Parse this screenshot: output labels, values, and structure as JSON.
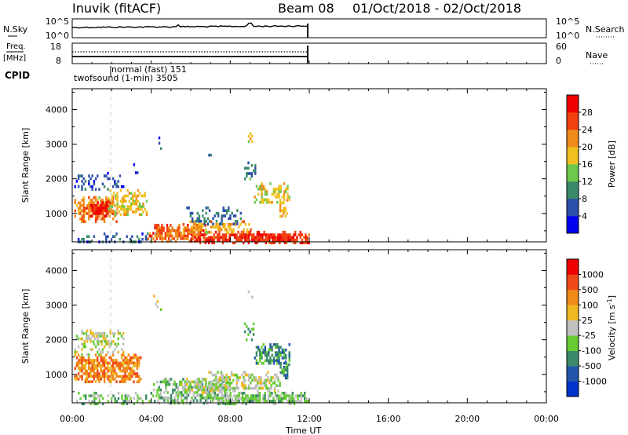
{
  "header": {
    "station": "Inuvik (fitACF)",
    "beam": "Beam 08",
    "date_range": "01/Oct/2018 - 02/Oct/2018"
  },
  "noise_panel": {
    "left_label": "N.Sky",
    "right_label": "N.Search",
    "left_ticks": [
      "10^5",
      "10^0"
    ],
    "right_ticks": [
      "10^5",
      "10^0"
    ]
  },
  "freq_panel": {
    "left_label_1": "Freq.",
    "left_label_2": "[MHz]",
    "right_label": "Nave",
    "left_ticks": [
      "18",
      "8"
    ],
    "right_ticks": [
      "60",
      "0"
    ]
  },
  "cpid": {
    "label": "CPID",
    "entries": [
      "normal (fast) 151",
      "twofsound (1-min) 3505"
    ]
  },
  "x_axis": {
    "label": "Time UT",
    "ticks": [
      "00:00",
      "04:00",
      "08:00",
      "12:00",
      "16:00",
      "20:00",
      "00:00"
    ]
  },
  "colors": {
    "power": [
      "#0000ee",
      "#2a4fa8",
      "#3b8a6a",
      "#6cc84a",
      "#f0c020",
      "#f08a1a",
      "#f04010",
      "#ee0000"
    ],
    "velocity": [
      "#0033cc",
      "#2255aa",
      "#3b8a6a",
      "#66cc33",
      "#c0c0c0",
      "#f0b820",
      "#f08a1a",
      "#f04818",
      "#ee0000"
    ]
  },
  "chart_data": [
    {
      "type": "heatmap",
      "title": "",
      "xlabel": "",
      "ylabel": "Slant Range [km]",
      "xlim": [
        0,
        24
      ],
      "ylim": [
        180,
        4600
      ],
      "yticks": [
        "4000",
        "3000",
        "2000",
        "1000"
      ],
      "colorbar": {
        "label": "Power [dB]",
        "ticks": [
          "28",
          "24",
          "20",
          "16",
          "12",
          "8",
          "4"
        ],
        "range": [
          0,
          32
        ]
      },
      "blobs": [
        {
          "t0": 0.1,
          "t1": 2.2,
          "r0": 800,
          "r1": 1500,
          "v": 22,
          "d": 0.75
        },
        {
          "t0": 0.9,
          "t1": 1.9,
          "r0": 950,
          "r1": 1350,
          "v": 29,
          "d": 0.85
        },
        {
          "t0": 1.8,
          "t1": 3.8,
          "r0": 1000,
          "r1": 1700,
          "v": 18,
          "d": 0.6
        },
        {
          "t0": 0.1,
          "t1": 2.6,
          "r0": 1700,
          "r1": 2200,
          "v": 6,
          "d": 0.35
        },
        {
          "t0": 0.1,
          "t1": 4.5,
          "r0": 180,
          "r1": 450,
          "v": 7,
          "d": 0.3
        },
        {
          "t0": 3.8,
          "t1": 6.8,
          "r0": 180,
          "r1": 700,
          "v": 24,
          "d": 0.75
        },
        {
          "t0": 6.0,
          "t1": 12.0,
          "r0": 180,
          "r1": 500,
          "v": 27,
          "d": 0.85
        },
        {
          "t0": 5.5,
          "t1": 9.0,
          "r0": 450,
          "r1": 800,
          "v": 20,
          "d": 0.55
        },
        {
          "t0": 5.6,
          "t1": 8.5,
          "r0": 700,
          "r1": 1200,
          "v": 8,
          "d": 0.3
        },
        {
          "t0": 9.2,
          "t1": 11.0,
          "r0": 1300,
          "r1": 1900,
          "v": 18,
          "d": 0.55
        },
        {
          "t0": 10.4,
          "t1": 10.9,
          "r0": 900,
          "r1": 1500,
          "v": 20,
          "d": 0.6
        },
        {
          "t0": 8.7,
          "t1": 9.3,
          "r0": 2000,
          "r1": 2500,
          "v": 8,
          "d": 0.4
        },
        {
          "t0": 8.8,
          "t1": 9.1,
          "r0": 3100,
          "r1": 3500,
          "v": 18,
          "d": 0.3
        },
        {
          "t0": 4.1,
          "t1": 4.5,
          "r0": 2800,
          "r1": 3300,
          "v": 6,
          "d": 0.25
        },
        {
          "t0": 3.0,
          "t1": 3.3,
          "r0": 2200,
          "r1": 2600,
          "v": 6,
          "d": 0.2
        },
        {
          "t0": 6.8,
          "t1": 7.2,
          "r0": 2600,
          "r1": 2800,
          "v": 8,
          "d": 0.3
        }
      ]
    },
    {
      "type": "heatmap",
      "title": "",
      "xlabel": "Time UT",
      "ylabel": "Slant Range [km]",
      "xlim": [
        0,
        24
      ],
      "ylim": [
        180,
        4600
      ],
      "yticks": [
        "4000",
        "3000",
        "2000",
        "1000"
      ],
      "colorbar": {
        "label": "Velocity [m s^-1]",
        "ticks": [
          "1000",
          "500",
          "100",
          "25",
          "-25",
          "-100",
          "-500",
          "-1000"
        ]
      },
      "blobs": [
        {
          "t0": 0.1,
          "t1": 3.5,
          "r0": 800,
          "r1": 1600,
          "v": 6,
          "d": 0.8
        },
        {
          "t0": 0.1,
          "t1": 2.6,
          "r0": 1600,
          "r1": 2300,
          "v": 4,
          "d": 0.35
        },
        {
          "t0": 0.2,
          "t1": 4.5,
          "r0": 180,
          "r1": 500,
          "v": 3,
          "d": 0.45
        },
        {
          "t0": 4.0,
          "t1": 8.0,
          "r0": 180,
          "r1": 900,
          "v": 3,
          "d": 0.55
        },
        {
          "t0": 5.5,
          "t1": 7.8,
          "r0": 500,
          "r1": 900,
          "v": 4,
          "d": 0.5
        },
        {
          "t0": 6.8,
          "t1": 10.5,
          "r0": 500,
          "r1": 1100,
          "v": 4,
          "d": 0.55
        },
        {
          "t0": 7.0,
          "t1": 12.0,
          "r0": 180,
          "r1": 500,
          "v": 3,
          "d": 0.85
        },
        {
          "t0": 9.2,
          "t1": 11.0,
          "r0": 1300,
          "r1": 1900,
          "v": 2,
          "d": 0.7
        },
        {
          "t0": 10.5,
          "t1": 11.0,
          "r0": 900,
          "r1": 1400,
          "v": 2,
          "d": 0.6
        },
        {
          "t0": 8.7,
          "t1": 9.2,
          "r0": 2000,
          "r1": 2500,
          "v": 2,
          "d": 0.4
        },
        {
          "t0": 8.8,
          "t1": 9.1,
          "r0": 3100,
          "r1": 3500,
          "v": 4,
          "d": 0.3
        },
        {
          "t0": 4.1,
          "t1": 4.5,
          "r0": 2800,
          "r1": 3300,
          "v": 4,
          "d": 0.2
        },
        {
          "t0": 0.4,
          "t1": 2.2,
          "r0": 1900,
          "r1": 2300,
          "v": 4,
          "d": 0.35
        }
      ]
    }
  ]
}
